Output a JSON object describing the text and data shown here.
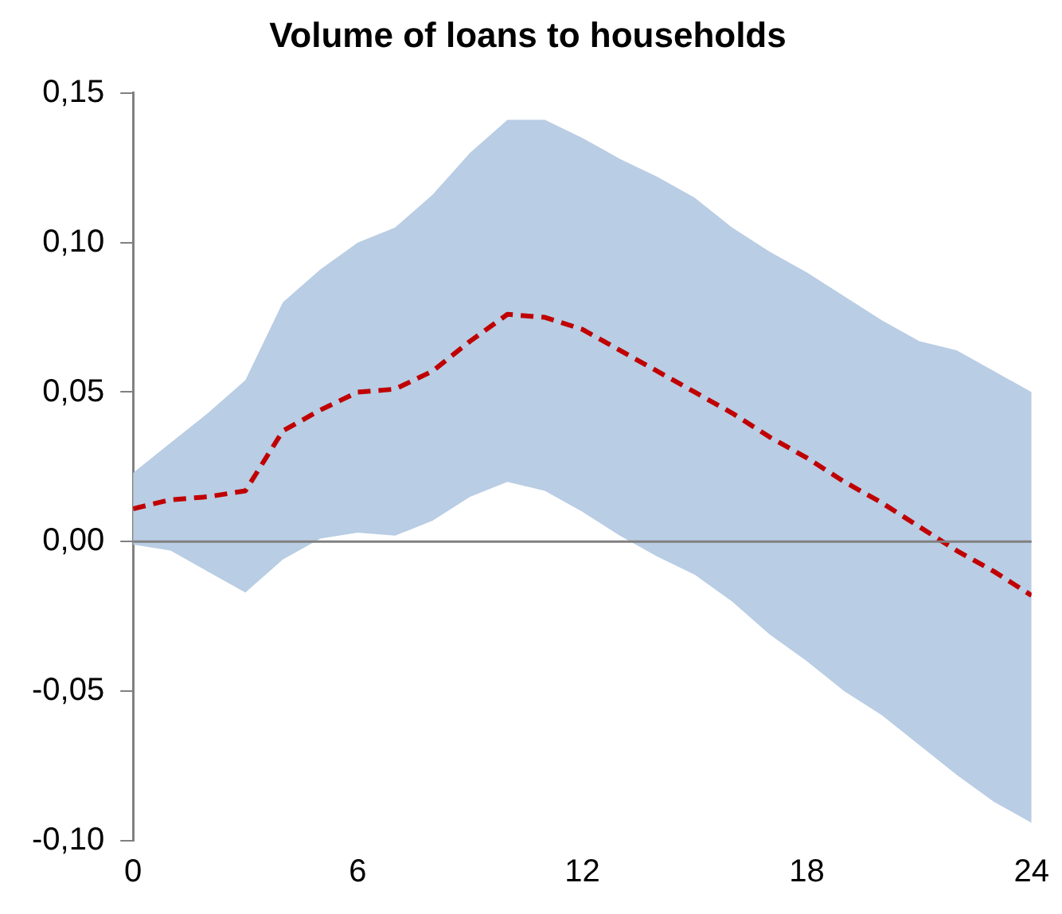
{
  "chart_data": {
    "type": "line",
    "title": "Volume of loans to households",
    "x": [
      0,
      1,
      2,
      3,
      4,
      5,
      6,
      7,
      8,
      9,
      10,
      11,
      12,
      13,
      14,
      15,
      16,
      17,
      18,
      19,
      20,
      21,
      22,
      23,
      24
    ],
    "series": [
      {
        "color": "#c00000",
        "values": [
          0.011,
          0.014,
          0.015,
          0.017,
          0.037,
          0.044,
          0.05,
          0.051,
          0.057,
          0.067,
          0.076,
          0.075,
          0.071,
          0.064,
          0.057,
          0.05,
          0.043,
          0.035,
          0.028,
          0.02,
          0.013,
          0.005,
          -0.003,
          -0.01,
          -0.018
        ],
        "lower": [
          -0.001,
          -0.003,
          -0.01,
          -0.017,
          -0.006,
          0.001,
          0.003,
          0.002,
          0.007,
          0.015,
          0.02,
          0.017,
          0.01,
          0.002,
          -0.005,
          -0.011,
          -0.02,
          -0.031,
          -0.04,
          -0.05,
          -0.058,
          -0.068,
          -0.078,
          -0.087,
          -0.094
        ],
        "upper": [
          0.023,
          0.033,
          0.043,
          0.054,
          0.08,
          0.091,
          0.1,
          0.105,
          0.116,
          0.13,
          0.141,
          0.141,
          0.135,
          0.128,
          0.122,
          0.115,
          0.105,
          0.097,
          0.09,
          0.082,
          0.074,
          0.067,
          0.064,
          0.057,
          0.05
        ]
      }
    ],
    "xlim": [
      0,
      24
    ],
    "xticks": [
      0,
      6,
      12,
      18,
      24
    ],
    "ylim": [
      -0.1,
      0.15
    ],
    "yticks": [
      {
        "value": -0.1,
        "label": "-0,10"
      },
      {
        "value": -0.05,
        "label": "-0,05"
      },
      {
        "value": 0,
        "label": "0,00"
      },
      {
        "value": 0.05,
        "label": "0,05"
      },
      {
        "value": 0.1,
        "label": "0,10"
      },
      {
        "value": 0.15,
        "label": "0,15"
      }
    ],
    "ref_lines": [
      {
        "axis": "y",
        "value": 0,
        "color": "#808080"
      }
    ],
    "grid": false,
    "legend": false,
    "marker": "none",
    "line_style": "dashed"
  }
}
